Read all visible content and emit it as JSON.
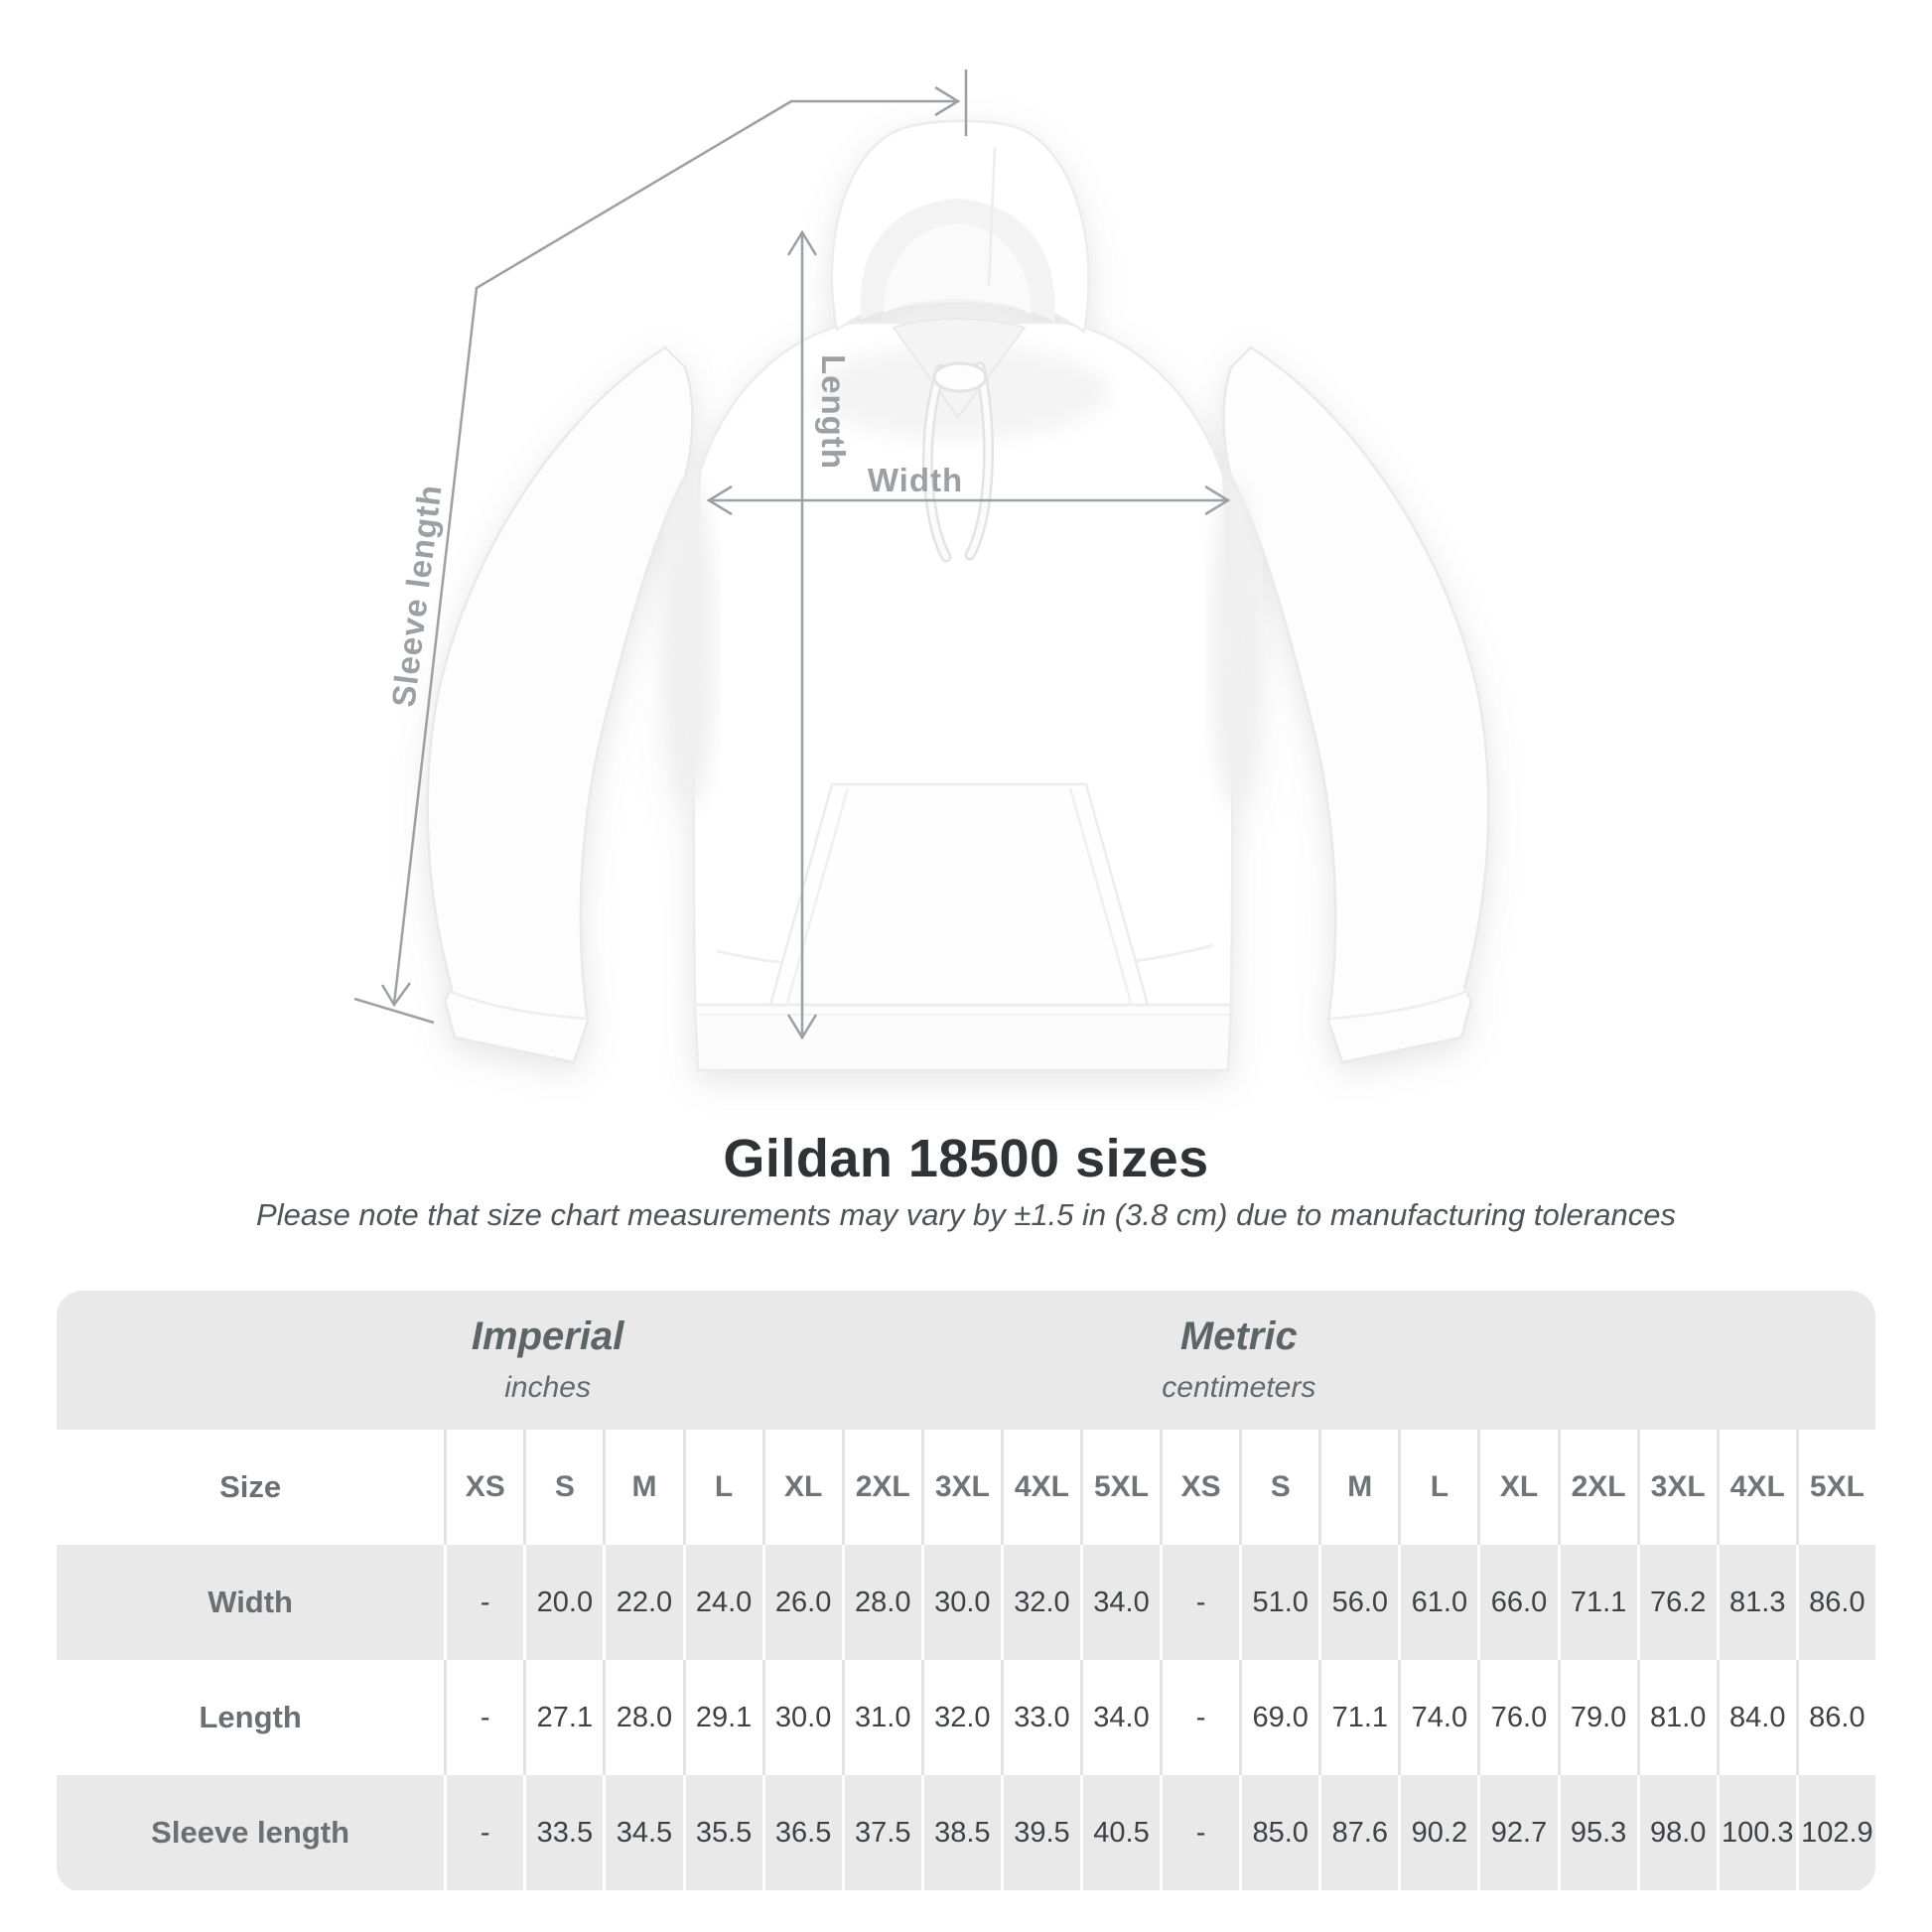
{
  "diagram": {
    "sleeve_length_label": "Sleeve length",
    "length_label": "Length",
    "width_label": "Width"
  },
  "heading": {
    "title": "Gildan 18500 sizes",
    "subtitle": "Please note that size chart measurements may vary by ±1.5 in (3.8 cm) due to manufacturing tolerances"
  },
  "table": {
    "unit_groups": [
      {
        "label": "Imperial",
        "unit": "inches"
      },
      {
        "label": "Metric",
        "unit": "centimeters"
      }
    ],
    "size_header": "Size",
    "sizes": [
      "XS",
      "S",
      "M",
      "L",
      "XL",
      "2XL",
      "3XL",
      "4XL",
      "5XL"
    ],
    "rows": [
      {
        "label": "Width",
        "imperial": [
          "-",
          "20.0",
          "22.0",
          "24.0",
          "26.0",
          "28.0",
          "30.0",
          "32.0",
          "34.0"
        ],
        "metric": [
          "-",
          "51.0",
          "56.0",
          "61.0",
          "66.0",
          "71.1",
          "76.2",
          "81.3",
          "86.0"
        ]
      },
      {
        "label": "Length",
        "imperial": [
          "-",
          "27.1",
          "28.0",
          "29.1",
          "30.0",
          "31.0",
          "32.0",
          "33.0",
          "34.0"
        ],
        "metric": [
          "-",
          "69.0",
          "71.1",
          "74.0",
          "76.0",
          "79.0",
          "81.0",
          "84.0",
          "86.0"
        ]
      },
      {
        "label": "Sleeve length",
        "imperial": [
          "-",
          "33.5",
          "34.5",
          "35.5",
          "36.5",
          "37.5",
          "38.5",
          "39.5",
          "40.5"
        ],
        "metric": [
          "-",
          "85.0",
          "87.6",
          "90.2",
          "92.7",
          "95.3",
          "98.0",
          "100.3",
          "102.9"
        ]
      }
    ]
  },
  "colors": {
    "table_gray": "#e9e9e9",
    "dimension_line": "#9aa0a4",
    "title_text": "#2f3336",
    "value_text": "#3d4245",
    "header_text": "#6e7477"
  },
  "chart_data": {
    "type": "table",
    "title": "Gildan 18500 sizes",
    "note": "Please note that size chart measurements may vary by ±1.5 in (3.8 cm) due to manufacturing tolerances",
    "units": [
      "inches",
      "centimeters"
    ],
    "sizes": [
      "XS",
      "S",
      "M",
      "L",
      "XL",
      "2XL",
      "3XL",
      "4XL",
      "5XL"
    ],
    "measurements": [
      {
        "name": "Width",
        "inches": [
          null,
          20.0,
          22.0,
          24.0,
          26.0,
          28.0,
          30.0,
          32.0,
          34.0
        ],
        "centimeters": [
          null,
          51.0,
          56.0,
          61.0,
          66.0,
          71.1,
          76.2,
          81.3,
          86.0
        ]
      },
      {
        "name": "Length",
        "inches": [
          null,
          27.1,
          28.0,
          29.1,
          30.0,
          31.0,
          32.0,
          33.0,
          34.0
        ],
        "centimeters": [
          null,
          69.0,
          71.1,
          74.0,
          76.0,
          79.0,
          81.0,
          84.0,
          86.0
        ]
      },
      {
        "name": "Sleeve length",
        "inches": [
          null,
          33.5,
          34.5,
          35.5,
          36.5,
          37.5,
          38.5,
          39.5,
          40.5
        ],
        "centimeters": [
          null,
          85.0,
          87.6,
          90.2,
          92.7,
          95.3,
          98.0,
          100.3,
          102.9
        ]
      }
    ]
  }
}
